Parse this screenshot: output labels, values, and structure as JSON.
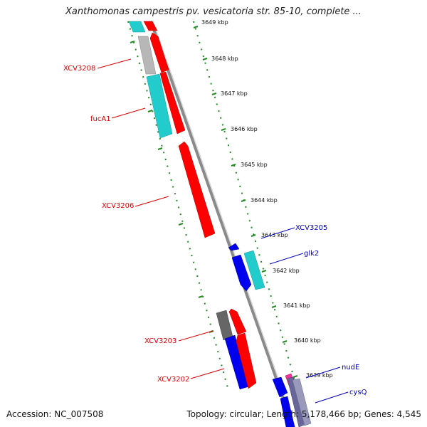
{
  "title": "Xanthomonas campestris pv. vesicatoria str. 85-10, complete ...",
  "footer": {
    "accession": "Accession: NC_007508",
    "summary": "Topology: circular; Length: 5,178,466 bp; Genes: 4,545"
  },
  "ruler": {
    "ticks": [
      "3649 kbp",
      "3648 kbp",
      "3647 kbp",
      "3646 kbp",
      "3645 kbp",
      "3644 kbp",
      "3643 kbp",
      "3642 kbp",
      "3641 kbp",
      "3640 kbp",
      "3639 kbp"
    ]
  },
  "genes": [
    {
      "label": "XCV3208",
      "color": "#dd0000"
    },
    {
      "label": "fucA1",
      "color": "#dd0000"
    },
    {
      "label": "XCV3206",
      "color": "#dd0000"
    },
    {
      "label": "XCV3205",
      "color": "#0000bb"
    },
    {
      "label": "glk2",
      "color": "#0000bb"
    },
    {
      "label": "XCV3203",
      "color": "#dd0000"
    },
    {
      "label": "XCV3202",
      "color": "#dd0000"
    },
    {
      "label": "nudE",
      "color": "#0000bb"
    },
    {
      "label": "cysQ",
      "color": "#0000bb"
    }
  ],
  "colors": {
    "backbone": "#8a8a8a",
    "dotted_frame": "#228b22",
    "forward_strand": "#ff0000",
    "reverse_strand": "#0000ee",
    "cog_cyan": "#22cccc",
    "cog_gray": "#aaaaaa",
    "cog_darkgray": "#666666",
    "cog_pink": "#ee3399",
    "cog_slate": "#666699"
  }
}
